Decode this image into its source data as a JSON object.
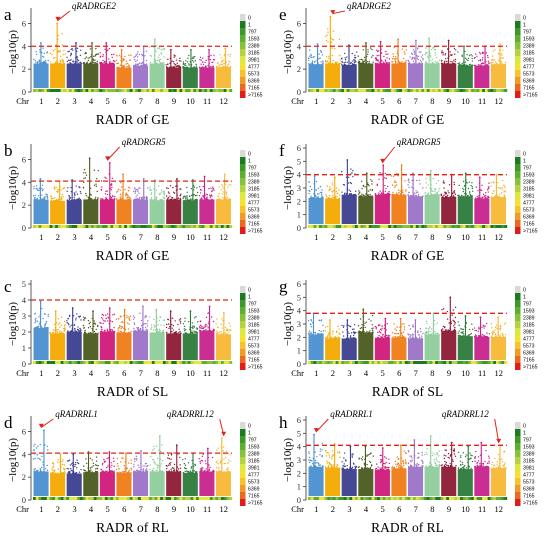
{
  "chart_data": [
    {
      "panel_letter": "a",
      "type": "scatter",
      "subtype": "manhattan",
      "xlabel": "RADR of GE",
      "ylabel": "−log10(p)",
      "x_first_tick_label": "Chr",
      "chromosomes": [
        "1",
        "2",
        "3",
        "4",
        "5",
        "6",
        "7",
        "8",
        "9",
        "10",
        "11",
        "12"
      ],
      "ylim": [
        0,
        7
      ],
      "yticks": [
        0,
        2,
        4,
        6
      ],
      "threshold": 4.0,
      "peak_max": [
        4.3,
        6.0,
        4.3,
        4.3,
        4.3,
        3.7,
        4.0,
        4.6,
        3.7,
        3.7,
        3.7,
        3.8
      ],
      "annotations": [
        {
          "label": "qRADRGE2",
          "chromosome": "2",
          "peak": 6.0
        }
      ],
      "density_legend": [
        "0",
        "1",
        "797",
        "1593",
        "2389",
        "3185",
        "3981",
        "4777",
        "5573",
        "6369",
        "7165",
        ">7165"
      ]
    },
    {
      "panel_letter": "b",
      "type": "scatter",
      "subtype": "manhattan",
      "xlabel": "RADR of GE",
      "ylabel": "−log10(p)",
      "x_first_tick_label": "",
      "chromosomes": [
        "1",
        "2",
        "3",
        "4",
        "5",
        "6",
        "7",
        "8",
        "9",
        "10",
        "11",
        "12"
      ],
      "ylim": [
        0,
        7
      ],
      "yticks": [
        0,
        2,
        4,
        6
      ],
      "threshold": 4.1,
      "peak_max": [
        4.3,
        4.1,
        4.2,
        6.1,
        5.7,
        4.7,
        4.3,
        4.2,
        4.3,
        4.2,
        4.5,
        4.7
      ],
      "annotations": [
        {
          "label": "qRADRGR5",
          "chromosome": "5",
          "peak": 5.7
        }
      ],
      "density_legend": [
        "0",
        "1",
        "797",
        "1593",
        "2389",
        "3185",
        "3981",
        "4777",
        "5573",
        "6369",
        "7165",
        ">7165"
      ]
    },
    {
      "panel_letter": "c",
      "type": "scatter",
      "subtype": "manhattan",
      "xlabel": "RADR of SL",
      "ylabel": "−log10(p)",
      "x_first_tick_label": "Chr",
      "chromosomes": [
        "1",
        "2",
        "3",
        "4",
        "5",
        "6",
        "7",
        "8",
        "9",
        "10",
        "11",
        "12"
      ],
      "ylim": [
        0,
        5
      ],
      "yticks": [
        0,
        1,
        2,
        3,
        4,
        5
      ],
      "threshold": 4.0,
      "peak_max": [
        3.9,
        3.3,
        3.5,
        3.3,
        3.5,
        3.4,
        3.6,
        3.4,
        3.3,
        3.3,
        3.6,
        3.2
      ],
      "annotations": [],
      "density_legend": [
        "0",
        "1",
        "797",
        "1593",
        "2389",
        "3185",
        "3981",
        "4777",
        "5573",
        "6369",
        "7165",
        ">7165"
      ]
    },
    {
      "panel_letter": "d",
      "type": "scatter",
      "subtype": "manhattan",
      "xlabel": "RADR of RL",
      "ylabel": "−log10(p)",
      "x_first_tick_label": "Chr",
      "chromosomes": [
        "1",
        "2",
        "3",
        "4",
        "5",
        "6",
        "7",
        "8",
        "9",
        "10",
        "11",
        "12"
      ],
      "ylim": [
        0,
        7
      ],
      "yticks": [
        0,
        2,
        4,
        6
      ],
      "threshold": 4.1,
      "peak_max": [
        6.1,
        4.0,
        4.0,
        4.2,
        4.2,
        4.1,
        4.3,
        5.6,
        4.8,
        4.1,
        4.5,
        5.4
      ],
      "annotations": [
        {
          "label": "qRADRRL1",
          "chromosome": "1",
          "peak": 6.1
        },
        {
          "label": "qRADRRL12",
          "chromosome": "12",
          "peak": 5.4
        }
      ],
      "density_legend": [
        "0",
        "1",
        "797",
        "1593",
        "2389",
        "3185",
        "3981",
        "4777",
        "5573",
        "6369",
        "7165",
        ">7165"
      ]
    },
    {
      "panel_letter": "e",
      "type": "scatter",
      "subtype": "manhattan",
      "xlabel": "RADR of GE",
      "ylabel": "−log10(p)",
      "x_first_tick_label": "Chr",
      "chromosomes": [
        "1",
        "2",
        "3",
        "4",
        "5",
        "6",
        "7",
        "8",
        "9",
        "10",
        "11",
        "12"
      ],
      "ylim": [
        0,
        7
      ],
      "yticks": [
        0,
        2,
        4,
        6
      ],
      "threshold": 4.0,
      "peak_max": [
        4.2,
        6.6,
        4.1,
        4.3,
        4.4,
        4.6,
        4.5,
        4.7,
        4.5,
        4.0,
        4.0,
        4.2
      ],
      "annotations": [
        {
          "label": "qRADRGE2",
          "chromosome": "2",
          "peak": 6.6
        }
      ],
      "density_legend": [
        "0",
        "1",
        "797",
        "1593",
        "2389",
        "3185",
        "3981",
        "4777",
        "5573",
        "6369",
        "7165",
        ">7165"
      ]
    },
    {
      "panel_letter": "f",
      "type": "scatter",
      "subtype": "manhattan",
      "xlabel": "RADR of GE",
      "ylabel": "−log10(p)",
      "x_first_tick_label": "",
      "chromosomes": [
        "1",
        "2",
        "3",
        "4",
        "5",
        "6",
        "7",
        "8",
        "9",
        "10",
        "11",
        "12"
      ],
      "ylim": [
        0,
        6
      ],
      "yticks": [
        0,
        1,
        2,
        3,
        4,
        5,
        6
      ],
      "threshold": 4.0,
      "peak_max": [
        3.9,
        3.8,
        5.1,
        4.1,
        4.7,
        4.7,
        4.1,
        4.3,
        4.0,
        4.1,
        3.8,
        4.0
      ],
      "annotations": [
        {
          "label": "qRADRGR5",
          "chromosome": "5",
          "peak": 4.7
        }
      ],
      "density_legend": [
        "0",
        "1",
        "797",
        "1593",
        "2389",
        "3185",
        "3981",
        "4777",
        "5573",
        "6369",
        "7165",
        ">7165"
      ]
    },
    {
      "panel_letter": "g",
      "type": "scatter",
      "subtype": "manhattan",
      "xlabel": "RADR of SL",
      "ylabel": "−log10(p)",
      "x_first_tick_label": "Chr",
      "chromosomes": [
        "1",
        "2",
        "3",
        "4",
        "5",
        "6",
        "7",
        "8",
        "9",
        "10",
        "11",
        "12"
      ],
      "ylim": [
        0,
        6
      ],
      "yticks": [
        0,
        1,
        2,
        3,
        4,
        5,
        6
      ],
      "threshold": 3.8,
      "peak_max": [
        3.8,
        3.3,
        3.3,
        4.1,
        3.4,
        3.4,
        3.3,
        3.8,
        5.0,
        3.6,
        3.5,
        3.5
      ],
      "annotations": [],
      "density_legend": [
        "0",
        "1",
        "797",
        "1593",
        "2389",
        "3185",
        "3981",
        "4777",
        "5573",
        "6369",
        "7165",
        ">7165"
      ]
    },
    {
      "panel_letter": "h",
      "type": "scatter",
      "subtype": "manhattan",
      "xlabel": "RADR of RL",
      "ylabel": "−log10(p)",
      "x_first_tick_label": "Chr",
      "chromosomes": [
        "1",
        "2",
        "3",
        "4",
        "5",
        "6",
        "7",
        "8",
        "9",
        "10",
        "11",
        "12"
      ],
      "ylim": [
        0,
        6
      ],
      "yticks": [
        0,
        1,
        2,
        3,
        4,
        5,
        6
      ],
      "threshold": 4.1,
      "peak_max": [
        4.9,
        4.2,
        4.0,
        4.0,
        3.9,
        4.1,
        4.5,
        4.8,
        4.3,
        4.0,
        4.3,
        4.1
      ],
      "annotations": [
        {
          "label": "qRADRRL1",
          "chromosome": "1",
          "peak": 4.9
        },
        {
          "label": "qRADRRL12",
          "chromosome": "12",
          "peak": 4.1
        }
      ],
      "density_legend": [
        "0",
        "1",
        "797",
        "1593",
        "2389",
        "3185",
        "3981",
        "4777",
        "5573",
        "6369",
        "7165",
        ">7165"
      ]
    }
  ],
  "colors": {
    "chromosomes": [
      "#4a8fd0",
      "#f4a900",
      "#3b3e8f",
      "#4a5a1c",
      "#d0197a",
      "#f07b15",
      "#9b72c8",
      "#8ecc9a",
      "#8b1a34",
      "#2c7a3a",
      "#c8238c",
      "#f7b733"
    ],
    "threshold": "#e2231a",
    "arrow": "#e2231a",
    "density_scale": [
      "#d9d9d9",
      "#1e7a1e",
      "#3a9a2a",
      "#5cb02e",
      "#86c23a",
      "#b3d43e",
      "#dde83c",
      "#f5e332",
      "#f7c22b",
      "#f29a24",
      "#ec6a1f",
      "#e21b1b"
    ]
  }
}
